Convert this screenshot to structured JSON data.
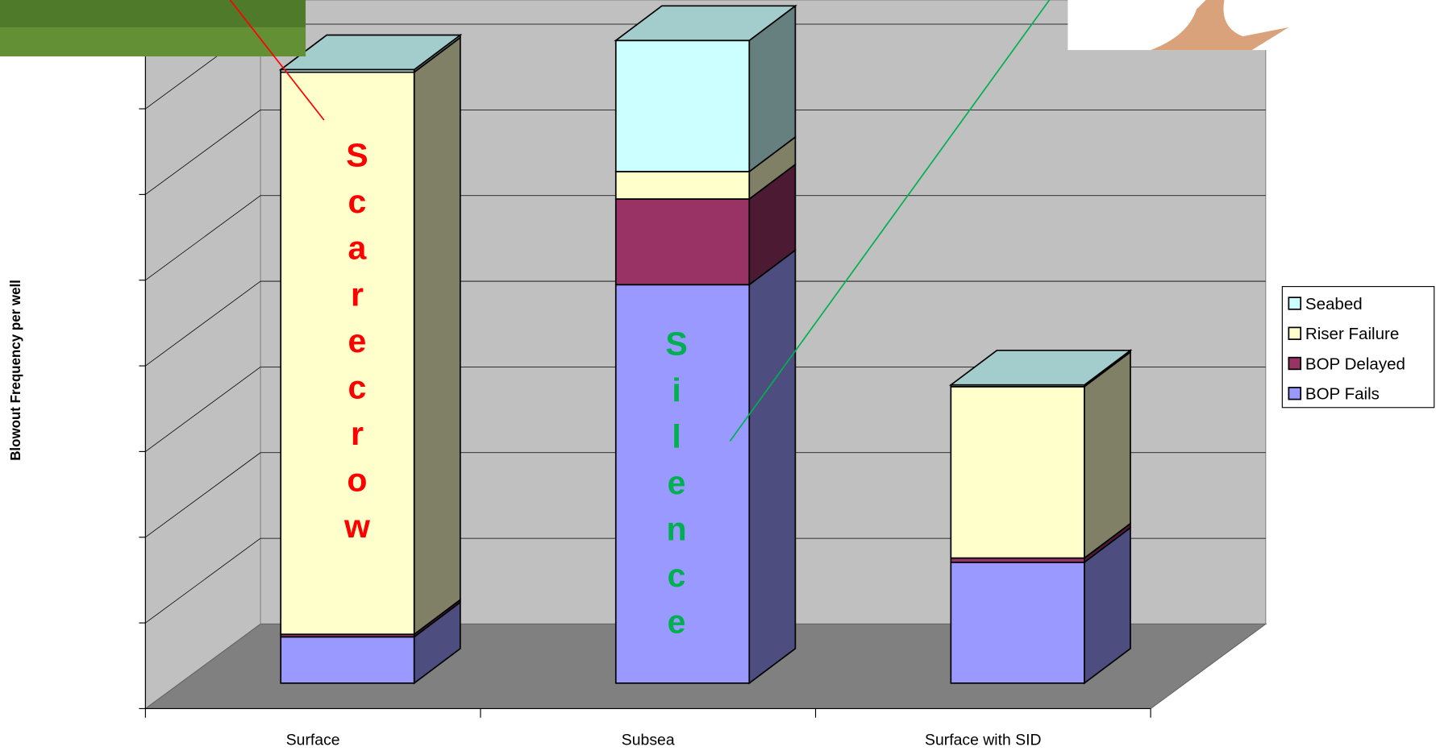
{
  "chart_data": {
    "type": "bar3d-stacked",
    "y_label": "Blowout Frequency per well",
    "categories": [
      "Surface",
      "Subsea",
      "Surface with SID"
    ],
    "series": [
      {
        "name": "BOP Fails",
        "color": "#9999ff",
        "values": [
          0.54,
          4.65,
          1.41
        ]
      },
      {
        "name": "BOP Delayed",
        "color": "#993366",
        "values": [
          0.03,
          1.0,
          0.05
        ]
      },
      {
        "name": "Riser Failure",
        "color": "#ffffcc",
        "values": [
          6.56,
          0.32,
          2.0
        ]
      },
      {
        "name": "Seabed",
        "color": "#ccffff",
        "values": [
          0.03,
          1.53,
          0.02
        ]
      }
    ],
    "ylim": [
      0,
      7.3
    ],
    "yticks": [
      0,
      1,
      2,
      3,
      4,
      5,
      6,
      7
    ],
    "grid": true,
    "legend": "right",
    "annotations": [
      {
        "text": "Scarecrow",
        "color": "#ff0000"
      },
      {
        "text": "Silence",
        "color": "#00b050"
      }
    ]
  }
}
